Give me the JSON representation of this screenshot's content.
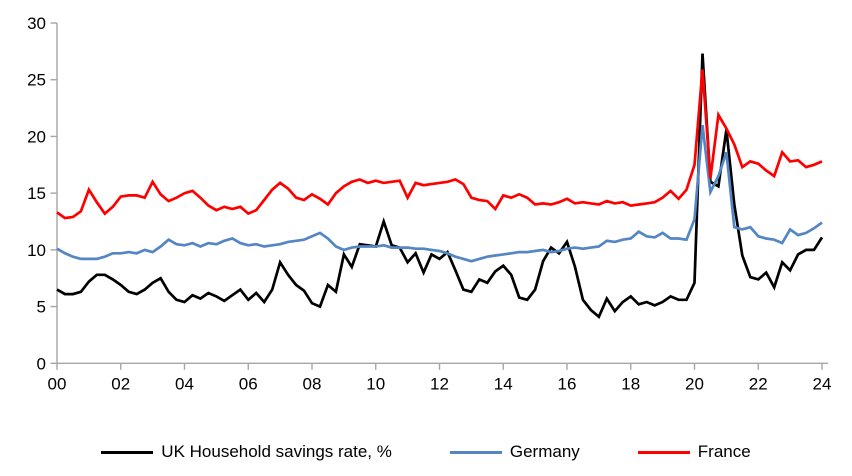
{
  "chart_data": {
    "type": "line",
    "title": "",
    "xlabel": "",
    "ylabel": "",
    "x_start": 2000,
    "x_step": 0.25,
    "xlim": [
      2000,
      2024.2
    ],
    "ylim": [
      0,
      30
    ],
    "grid": false,
    "legend_position": "bottom",
    "axis_color": "#A6A6A6",
    "tick_label_color": "#000000",
    "y_ticks": [
      0,
      5,
      10,
      15,
      20,
      25,
      30
    ],
    "x_ticks": [
      2000,
      2002,
      2004,
      2006,
      2008,
      2010,
      2012,
      2014,
      2016,
      2018,
      2020,
      2022,
      2024
    ],
    "x_tick_labels": [
      "00",
      "02",
      "04",
      "06",
      "08",
      "10",
      "12",
      "14",
      "16",
      "18",
      "20",
      "22",
      "24"
    ],
    "series": [
      {
        "id": "uk-household-savings",
        "name": "UK Household savings rate, %",
        "color": "#000000",
        "values": [
          6.5,
          6.1,
          6.1,
          6.3,
          7.2,
          7.8,
          7.8,
          7.4,
          6.9,
          6.3,
          6.1,
          6.5,
          7.1,
          7.5,
          6.3,
          5.6,
          5.4,
          6.0,
          5.7,
          6.2,
          5.9,
          5.5,
          6.0,
          6.5,
          5.6,
          6.2,
          5.4,
          6.5,
          8.9,
          7.8,
          6.9,
          6.4,
          5.3,
          5.0,
          6.9,
          6.3,
          9.6,
          8.5,
          10.5,
          10.4,
          10.3,
          12.5,
          10.4,
          10.2,
          8.9,
          9.7,
          8.0,
          9.6,
          9.2,
          9.8,
          8.2,
          6.5,
          6.3,
          7.4,
          7.1,
          8.1,
          8.6,
          7.8,
          5.8,
          5.6,
          6.5,
          9.0,
          10.2,
          9.7,
          10.7,
          8.5,
          5.6,
          4.7,
          4.1,
          5.7,
          4.6,
          5.4,
          5.9,
          5.2,
          5.4,
          5.1,
          5.4,
          5.9,
          5.6,
          5.6,
          7.1,
          27.3,
          16.0,
          15.6,
          20.6,
          14.0,
          9.5,
          7.6,
          7.4,
          8.0,
          6.7,
          8.9,
          8.2,
          9.6,
          10.0,
          10.0,
          11.1
        ]
      },
      {
        "id": "germany",
        "name": "Germany",
        "color": "#5486C4",
        "values": [
          10.1,
          9.7,
          9.4,
          9.2,
          9.2,
          9.2,
          9.4,
          9.7,
          9.7,
          9.8,
          9.7,
          10.0,
          9.8,
          10.3,
          10.9,
          10.5,
          10.4,
          10.6,
          10.3,
          10.6,
          10.5,
          10.8,
          11.0,
          10.6,
          10.4,
          10.5,
          10.3,
          10.4,
          10.5,
          10.7,
          10.8,
          10.9,
          11.2,
          11.5,
          11.0,
          10.3,
          10.0,
          10.2,
          10.3,
          10.3,
          10.3,
          10.4,
          10.2,
          10.2,
          10.2,
          10.1,
          10.1,
          10.0,
          9.9,
          9.7,
          9.4,
          9.2,
          9.0,
          9.2,
          9.4,
          9.5,
          9.6,
          9.7,
          9.8,
          9.8,
          9.9,
          10.0,
          9.8,
          9.9,
          10.1,
          10.2,
          10.1,
          10.2,
          10.3,
          10.8,
          10.7,
          10.9,
          11.0,
          11.6,
          11.2,
          11.1,
          11.5,
          11.0,
          11.0,
          10.9,
          12.7,
          21.0,
          15.1,
          16.5,
          18.6,
          12.0,
          11.8,
          12.0,
          11.2,
          11.0,
          10.9,
          10.6,
          11.8,
          11.3,
          11.5,
          11.9,
          12.4
        ]
      },
      {
        "id": "france",
        "name": "France",
        "color": "#FF0000",
        "values": [
          13.3,
          12.8,
          12.9,
          13.4,
          15.3,
          14.2,
          13.2,
          13.8,
          14.7,
          14.8,
          14.8,
          14.6,
          16.0,
          14.9,
          14.3,
          14.6,
          15.0,
          15.2,
          14.6,
          13.9,
          13.5,
          13.8,
          13.6,
          13.8,
          13.2,
          13.5,
          14.4,
          15.3,
          15.9,
          15.4,
          14.6,
          14.4,
          14.9,
          14.5,
          14.0,
          15.0,
          15.6,
          16.0,
          16.2,
          15.9,
          16.1,
          15.9,
          16.0,
          16.1,
          14.6,
          15.9,
          15.7,
          15.8,
          15.9,
          16.0,
          16.2,
          15.8,
          14.6,
          14.4,
          14.3,
          13.6,
          14.8,
          14.6,
          14.9,
          14.6,
          14.0,
          14.1,
          14.0,
          14.2,
          14.5,
          14.1,
          14.2,
          14.1,
          14.0,
          14.3,
          14.1,
          14.2,
          13.9,
          14.0,
          14.1,
          14.2,
          14.6,
          15.2,
          14.5,
          15.3,
          17.5,
          25.9,
          16.3,
          21.9,
          20.7,
          19.3,
          17.3,
          17.8,
          17.6,
          17.0,
          16.5,
          18.6,
          17.8,
          17.9,
          17.3,
          17.5,
          17.8
        ]
      }
    ]
  }
}
